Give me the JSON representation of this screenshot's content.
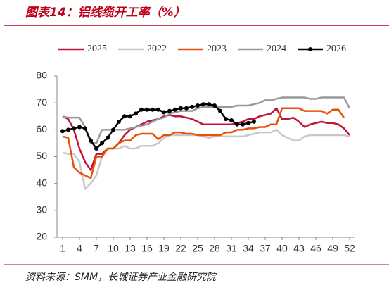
{
  "chart_data": {
    "type": "line",
    "title": "图表14：铝线缆开工率（%）",
    "source": "资料来源：SMM，长城证券产业金融研究院",
    "x": [
      1,
      2,
      3,
      4,
      5,
      6,
      7,
      8,
      9,
      10,
      11,
      12,
      13,
      14,
      15,
      16,
      17,
      18,
      19,
      20,
      21,
      22,
      23,
      24,
      25,
      26,
      27,
      28,
      29,
      30,
      31,
      32,
      33,
      34,
      35,
      36,
      37,
      38,
      39,
      40,
      41,
      42,
      43,
      44,
      45,
      46,
      47,
      48,
      49,
      50,
      51,
      52
    ],
    "xlim": [
      0,
      53
    ],
    "xticks": [
      1,
      4,
      7,
      10,
      13,
      16,
      19,
      22,
      25,
      28,
      31,
      34,
      37,
      40,
      43,
      46,
      49,
      52
    ],
    "ylim": [
      20,
      80
    ],
    "yticks": [
      20,
      30,
      40,
      50,
      60,
      70,
      80
    ],
    "legend": "top",
    "series": [
      {
        "name": "2025",
        "color": "#c0143c",
        "values": [
          65,
          64,
          60,
          53,
          48,
          45,
          51,
          51,
          53,
          53,
          55,
          58,
          60,
          61,
          62,
          63,
          63.5,
          64,
          65,
          65.5,
          65,
          65,
          64.5,
          64,
          63,
          62,
          62,
          62,
          62,
          62,
          62,
          62.5,
          63,
          64,
          64,
          65,
          65.5,
          66,
          68,
          64,
          64,
          64.5,
          63,
          61,
          62,
          62.5,
          63,
          62.5,
          62.5,
          62,
          60.5,
          58
        ]
      },
      {
        "name": "2022",
        "color": "#c8c8c8",
        "values": [
          51.5,
          51,
          51,
          48,
          38,
          40,
          43,
          50,
          53,
          53,
          53,
          54,
          53,
          53,
          54,
          54,
          54,
          55,
          57,
          58,
          58,
          58,
          58,
          58,
          58,
          57.5,
          57,
          57.5,
          57.5,
          57.5,
          57.5,
          57.5,
          57.5,
          58,
          58.5,
          59,
          59,
          59,
          60,
          58,
          57,
          56,
          56,
          57.5,
          58,
          58,
          58,
          58,
          58,
          58,
          58,
          57.5
        ]
      },
      {
        "name": "2023",
        "color": "#e8500a",
        "values": [
          57.5,
          57,
          46,
          44,
          43,
          42,
          50,
          50,
          53,
          53,
          55,
          56,
          56,
          58,
          58.5,
          58.5,
          58.5,
          56.5,
          58,
          58,
          59,
          59,
          58.5,
          58.5,
          58,
          58,
          58,
          58,
          58,
          59,
          59,
          60,
          60,
          60.5,
          60.5,
          61,
          61,
          62,
          62,
          68,
          68,
          68,
          68,
          67,
          67,
          67,
          67,
          66,
          67.5,
          67.5,
          64.5,
          null
        ]
      },
      {
        "name": "2024",
        "color": "#999999",
        "values": [
          65,
          64.5,
          64.5,
          64.5,
          61,
          55,
          55,
          60,
          60,
          60,
          60,
          60,
          60.5,
          61,
          61.5,
          62,
          63,
          64,
          64.5,
          66,
          66.5,
          67,
          67,
          67,
          68,
          68.5,
          68.5,
          68.5,
          68.5,
          68.5,
          68.5,
          69,
          69,
          69,
          69.5,
          70,
          71,
          71,
          71.5,
          72,
          72,
          72,
          72,
          72,
          71.5,
          71.5,
          72,
          72,
          72,
          72,
          72,
          68
        ]
      },
      {
        "name": "2026",
        "color": "#000000",
        "markers": true,
        "values": [
          59.5,
          60,
          60.5,
          61,
          60.5,
          56,
          53,
          55,
          57,
          60,
          63,
          65,
          65,
          66,
          67.5,
          67.5,
          67.5,
          67.5,
          66.5,
          67,
          67.5,
          68,
          68,
          68.5,
          69,
          69.5,
          69.5,
          69,
          67,
          64,
          63.5,
          62,
          62,
          62.5,
          63,
          null,
          null,
          null,
          null,
          null,
          null,
          null,
          null,
          null,
          null,
          null,
          null,
          null,
          null,
          null,
          null,
          null
        ]
      }
    ]
  }
}
